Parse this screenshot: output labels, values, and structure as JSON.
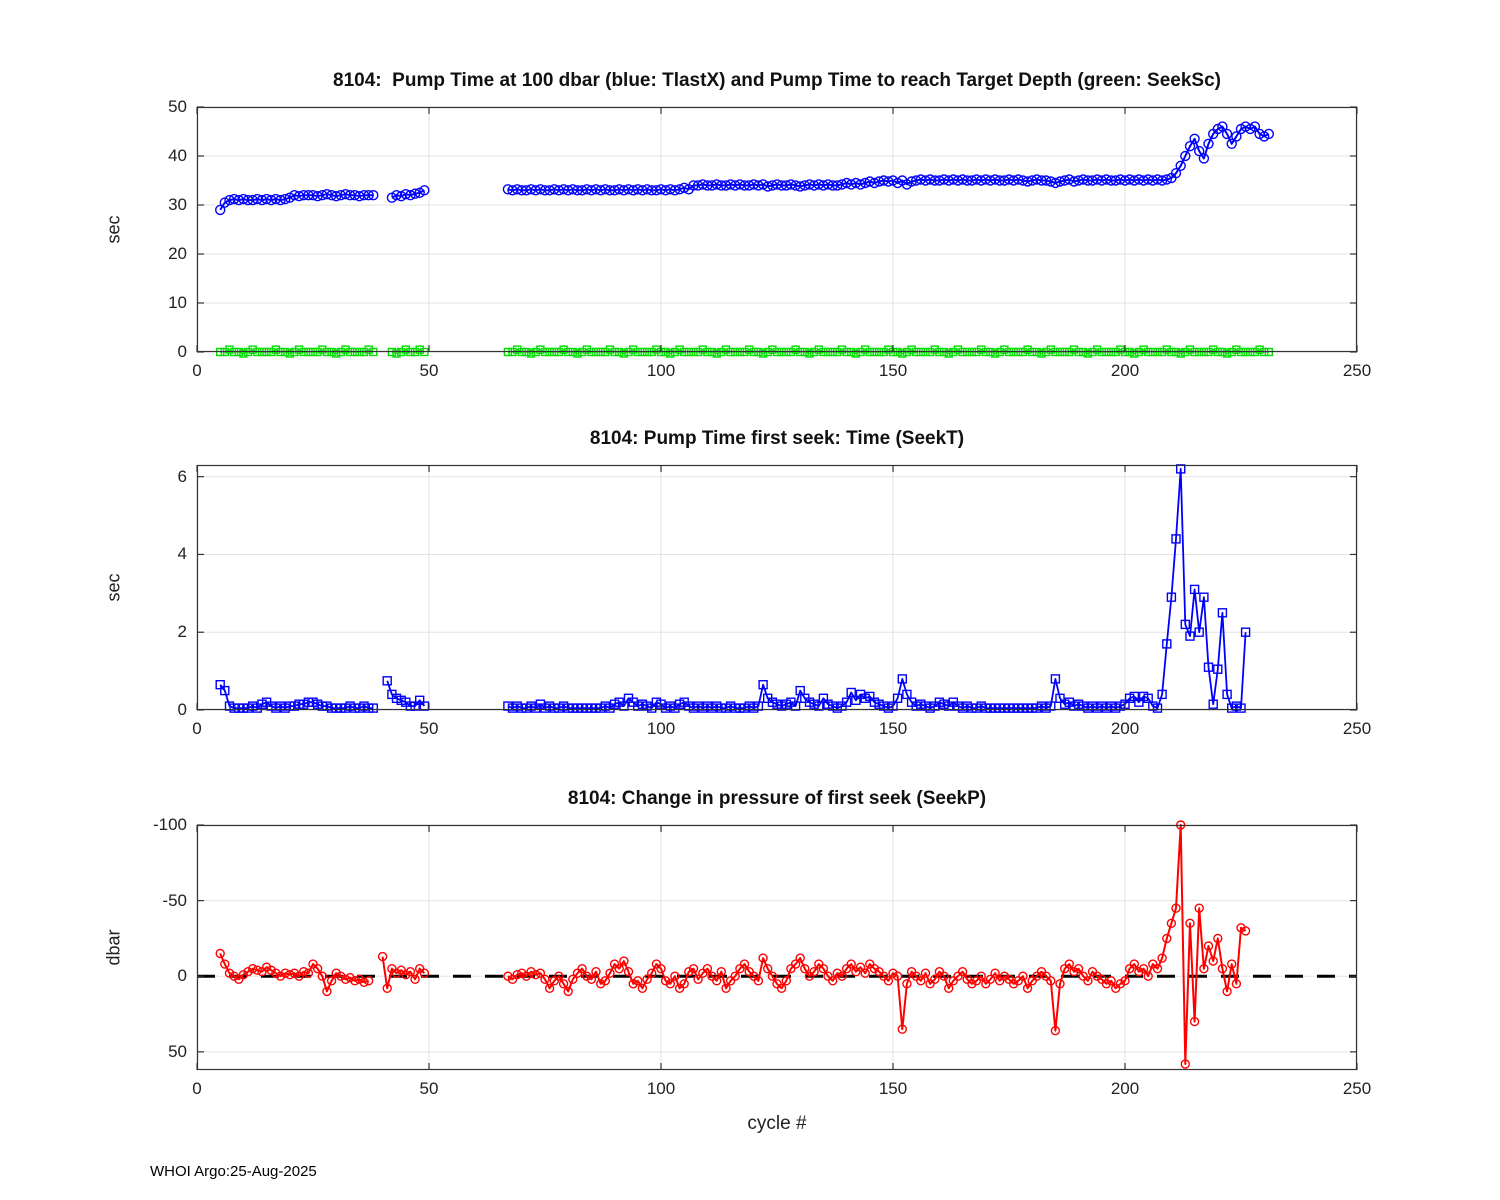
{
  "page": {
    "footer": "WHOI Argo:25-Aug-2025"
  },
  "chart_data": [
    {
      "type": "line",
      "title": "8104:  Pump Time at 100 dbar (blue: TlastX) and Pump Time to reach Target Depth (green: SeekSc)",
      "xlabel": "",
      "ylabel": "sec",
      "xlim": [
        0,
        250
      ],
      "ylim": [
        0,
        50
      ],
      "xticks": [
        0,
        50,
        100,
        150,
        200,
        250
      ],
      "yticks": [
        0,
        10,
        20,
        30,
        40,
        50
      ],
      "grid": true,
      "legend": "in title: blue = TlastX, green = SeekSc",
      "series": [
        {
          "name": "TlastX",
          "color": "#0000ff",
          "marker": "circle",
          "marker_size": 4.5,
          "line_width": 2,
          "start_cycle": 5,
          "values": [
            29,
            30.5,
            31,
            31.2,
            31,
            31.2,
            31,
            31,
            31.2,
            31,
            31.2,
            31,
            31.2,
            31,
            31.2,
            31.5,
            32,
            31.8,
            32,
            32,
            32,
            31.8,
            32,
            32.2,
            32,
            31.8,
            32,
            32.2,
            32,
            32,
            31.8,
            32,
            32,
            32,
            null,
            null,
            null,
            31.5,
            32,
            31.8,
            32.2,
            32,
            32.3,
            32.5,
            33,
            null,
            null,
            null,
            null,
            null,
            null,
            null,
            null,
            null,
            null,
            null,
            null,
            null,
            null,
            null,
            null,
            null,
            33.2,
            33,
            33.2,
            33,
            33,
            33.2,
            33,
            33.2,
            33,
            33,
            33.2,
            33,
            33.2,
            33,
            33.2,
            33,
            33,
            33.2,
            33,
            33.2,
            33,
            33.2,
            33,
            33,
            33.2,
            33,
            33.2,
            33,
            33.2,
            33,
            33.2,
            33,
            33,
            33.2,
            33,
            33.2,
            33,
            33.2,
            33.5,
            33.2,
            34,
            34,
            34.2,
            34,
            34,
            34.2,
            34,
            34,
            34.2,
            34,
            34.2,
            34,
            34,
            34.2,
            34,
            34.2,
            33.8,
            34,
            34.2,
            34,
            34,
            34.2,
            34,
            33.8,
            34,
            34.2,
            34,
            34.2,
            34,
            34.2,
            34,
            34,
            34.2,
            34.5,
            34.2,
            34.5,
            34.2,
            34.5,
            34.8,
            34.5,
            34.8,
            35,
            34.8,
            35,
            34.5,
            35,
            34.2,
            34.8,
            35,
            35.2,
            35,
            35.2,
            35,
            35,
            35.2,
            35,
            35.2,
            35,
            35.2,
            35,
            35,
            35.2,
            35,
            35.2,
            35,
            35.2,
            35,
            35,
            35.2,
            35,
            35.2,
            35,
            34.8,
            35,
            35.2,
            35,
            35,
            34.8,
            34.5,
            34.8,
            35,
            35.2,
            34.8,
            35,
            35.2,
            35,
            35,
            35.2,
            35,
            35.2,
            35,
            35,
            35.2,
            35,
            35.2,
            35,
            35.2,
            35,
            35.2,
            35,
            35.2,
            35,
            35.2,
            35.5,
            36.5,
            38,
            40,
            42,
            43.5,
            41,
            39.5,
            42.5,
            44.5,
            45.5,
            46,
            44.5,
            42.5,
            44,
            45.5,
            46,
            45.5,
            46,
            44.5,
            44,
            44.5
          ]
        },
        {
          "name": "SeekSc",
          "color": "#00dd00",
          "marker": "square",
          "marker_size": 3.5,
          "line_width": 1.2,
          "start_cycle": 5,
          "values": [
            0,
            0,
            0.5,
            0,
            0,
            -0.3,
            0,
            0.5,
            0,
            0,
            0,
            0,
            0.5,
            0,
            0,
            -0.3,
            0,
            0.5,
            0,
            0,
            0,
            0,
            0.5,
            0,
            0,
            -0.3,
            0,
            0.5,
            0,
            0,
            0,
            0,
            0.5,
            0,
            null,
            null,
            null,
            0,
            -0.3,
            0,
            0.5,
            0,
            0,
            0.5,
            0,
            null,
            null,
            null,
            null,
            null,
            null,
            null,
            null,
            null,
            null,
            null,
            null,
            null,
            null,
            null,
            null,
            null,
            0,
            0,
            0.5,
            0,
            0,
            -0.3,
            0,
            0.5,
            0,
            0,
            0,
            0,
            0.5,
            0,
            0,
            -0.3,
            0,
            0.5,
            0,
            0,
            0,
            0,
            0.5,
            0,
            0,
            -0.3,
            0,
            0.5,
            0,
            0,
            0,
            0,
            0.5,
            0,
            0,
            -0.3,
            0,
            0.5,
            0,
            0,
            0,
            0,
            0.5,
            0,
            0,
            -0.3,
            0,
            0.5,
            0,
            0,
            0,
            0,
            0.5,
            0,
            0,
            -0.3,
            0,
            0.5,
            0,
            0,
            0,
            0,
            0.5,
            0,
            0,
            -0.3,
            0,
            0.5,
            0,
            0,
            0,
            0,
            0.5,
            0,
            0,
            -0.3,
            0,
            0.5,
            0,
            0,
            0,
            0,
            0.5,
            0,
            0,
            -0.3,
            0,
            0.5,
            0,
            0,
            0,
            0,
            0.5,
            0,
            0,
            -0.3,
            0,
            0.5,
            0,
            0,
            0,
            0,
            0.5,
            0,
            0,
            -0.3,
            0,
            0.5,
            0,
            0,
            0,
            0,
            0.5,
            0,
            0,
            -0.3,
            0,
            0.5,
            0,
            0,
            0,
            0,
            0.5,
            0,
            0,
            -0.3,
            0,
            0.5,
            0,
            0,
            0,
            0,
            0.5,
            0,
            0,
            -0.3,
            0,
            0.5,
            0,
            0,
            0,
            0,
            0.5,
            0,
            0,
            -0.3,
            0,
            0.5,
            0,
            0,
            0,
            0,
            0.5,
            0,
            0,
            -0.3,
            0,
            0.5,
            0,
            0,
            0,
            0,
            0.5,
            0,
            0
          ]
        }
      ]
    },
    {
      "type": "line",
      "title": "8104: Pump Time first seek: Time (SeekT)",
      "xlabel": "",
      "ylabel": "sec",
      "xlim": [
        0,
        250
      ],
      "ylim": [
        0,
        6.3
      ],
      "xticks": [
        0,
        50,
        100,
        150,
        200,
        250
      ],
      "yticks": [
        0,
        2,
        4,
        6
      ],
      "grid": true,
      "series": [
        {
          "name": "SeekT",
          "color": "#0000ff",
          "marker": "square",
          "marker_size": 4,
          "line_width": 1.8,
          "start_cycle": 5,
          "values": [
            0.65,
            0.5,
            0.1,
            0.05,
            0.05,
            0.05,
            0.05,
            0.1,
            0.05,
            0.15,
            0.2,
            0.1,
            0.05,
            0.1,
            0.05,
            0.1,
            0.1,
            0.15,
            0.15,
            0.2,
            0.2,
            0.15,
            0.1,
            0.1,
            0.05,
            0.05,
            0.05,
            0.05,
            0.1,
            0.05,
            0.05,
            0.1,
            0.05,
            0.05,
            null,
            null,
            0.75,
            0.4,
            0.3,
            0.25,
            0.2,
            0.1,
            0.1,
            0.25,
            0.1,
            null,
            null,
            null,
            null,
            null,
            null,
            null,
            null,
            null,
            null,
            null,
            null,
            null,
            null,
            null,
            null,
            null,
            0.1,
            0.05,
            0.1,
            0.05,
            0.05,
            0.1,
            0.05,
            0.15,
            0.05,
            0.1,
            0.05,
            0.05,
            0.1,
            0.05,
            0.05,
            0.05,
            0.05,
            0.05,
            0.05,
            0.05,
            0.05,
            0.1,
            0.05,
            0.15,
            0.2,
            0.1,
            0.3,
            0.2,
            0.1,
            0.15,
            0.1,
            0.05,
            0.2,
            0.15,
            0.05,
            0.1,
            0.05,
            0.15,
            0.2,
            0.1,
            0.05,
            0.1,
            0.05,
            0.1,
            0.05,
            0.1,
            0.05,
            0.05,
            0.1,
            0.05,
            0.05,
            0.05,
            0.1,
            0.05,
            0.1,
            0.65,
            0.3,
            0.2,
            0.15,
            0.1,
            0.15,
            0.2,
            0.1,
            0.5,
            0.3,
            0.2,
            0.15,
            0.1,
            0.3,
            0.15,
            0.1,
            0.05,
            0.1,
            0.2,
            0.45,
            0.25,
            0.4,
            0.3,
            0.35,
            0.2,
            0.15,
            0.1,
            0.05,
            0.1,
            0.3,
            0.8,
            0.4,
            0.2,
            0.1,
            0.15,
            0.1,
            0.05,
            0.1,
            0.2,
            0.15,
            0.1,
            0.2,
            0.1,
            0.05,
            0.1,
            0.05,
            0.05,
            0.1,
            0.05,
            0.05,
            0.05,
            0.05,
            0.05,
            0.05,
            0.05,
            0.05,
            0.05,
            0.05,
            0.05,
            0.05,
            0.1,
            0.05,
            0.1,
            0.8,
            0.3,
            0.15,
            0.2,
            0.1,
            0.15,
            0.1,
            0.05,
            0.1,
            0.05,
            0.1,
            0.05,
            0.1,
            0.05,
            0.1,
            0.15,
            0.3,
            0.35,
            0.2,
            0.35,
            0.3,
            0.1,
            0.05,
            0.4,
            1.7,
            2.9,
            4.4,
            6.2,
            2.2,
            1.9,
            3.1,
            2.0,
            2.9,
            1.1,
            0.15,
            1.05,
            2.5,
            0.4,
            0.05,
            0.1,
            0.05,
            2.0
          ]
        }
      ]
    },
    {
      "type": "line",
      "title": "8104: Change in pressure of first seek (SeekP)",
      "xlabel": "cycle #",
      "ylabel": "dbar",
      "xlim": [
        0,
        250
      ],
      "ylim": [
        -100,
        62
      ],
      "y_reversed": true,
      "xticks": [
        0,
        50,
        100,
        150,
        200,
        250
      ],
      "yticks": [
        -100,
        -50,
        0,
        50
      ],
      "grid": true,
      "ref_line": {
        "y": 0,
        "color": "#000000",
        "style": "dashed"
      },
      "series": [
        {
          "name": "SeekP",
          "color": "#ff0000",
          "marker": "circle",
          "marker_size": 4,
          "line_width": 2,
          "start_cycle": 5,
          "values": [
            -15,
            -8,
            -2,
            0,
            2,
            -1,
            -3,
            -5,
            -4,
            -3,
            -6,
            -4,
            -2,
            0,
            -2,
            -1,
            -2,
            0,
            -3,
            -2,
            -8,
            -5,
            0,
            10,
            3,
            -2,
            0,
            2,
            1,
            3,
            2,
            4,
            3,
            null,
            null,
            -13,
            8,
            -5,
            -2,
            -4,
            -1,
            -3,
            2,
            -5,
            -2,
            null,
            null,
            null,
            null,
            null,
            null,
            null,
            null,
            null,
            null,
            null,
            null,
            null,
            null,
            null,
            null,
            null,
            0,
            2,
            -1,
            -2,
            0,
            -3,
            -1,
            -2,
            2,
            8,
            3,
            0,
            5,
            10,
            2,
            -2,
            -5,
            0,
            2,
            -3,
            5,
            3,
            -2,
            -8,
            -5,
            -10,
            -3,
            5,
            3,
            8,
            2,
            -2,
            -8,
            -5,
            3,
            5,
            0,
            8,
            5,
            -3,
            -5,
            2,
            -2,
            -5,
            0,
            3,
            -3,
            8,
            3,
            0,
            -5,
            -8,
            -3,
            0,
            3,
            -12,
            -5,
            0,
            5,
            8,
            3,
            -5,
            -8,
            -12,
            -5,
            0,
            -3,
            -8,
            -5,
            0,
            3,
            -2,
            0,
            -5,
            -8,
            -3,
            -6,
            -2,
            -8,
            -5,
            -3,
            0,
            3,
            -2,
            0,
            35,
            5,
            -3,
            0,
            3,
            -2,
            5,
            2,
            -3,
            0,
            8,
            3,
            0,
            -3,
            2,
            5,
            3,
            0,
            5,
            2,
            -2,
            3,
            0,
            2,
            5,
            3,
            0,
            8,
            3,
            0,
            -3,
            0,
            3,
            36,
            5,
            -5,
            -8,
            -3,
            -5,
            0,
            3,
            -3,
            0,
            2,
            5,
            3,
            8,
            5,
            3,
            -5,
            -8,
            -3,
            -5,
            0,
            -8,
            -5,
            -12,
            -25,
            -35,
            -45,
            -100,
            58,
            -35,
            30,
            -45,
            -5,
            -20,
            -10,
            -25,
            -5,
            10,
            -8,
            5,
            -32,
            -30
          ]
        }
      ]
    }
  ]
}
